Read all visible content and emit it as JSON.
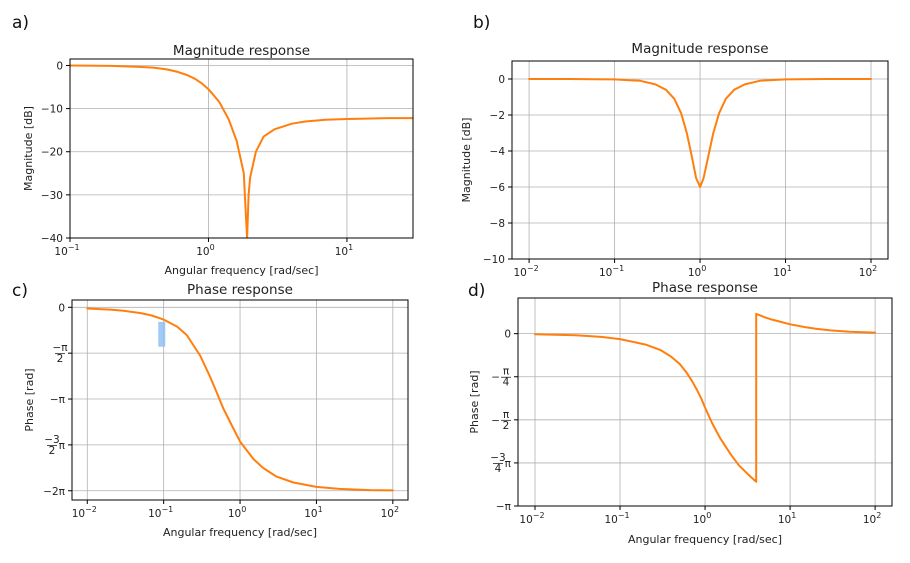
{
  "chart_data": [
    {
      "panel": "a)",
      "type": "line",
      "title": "Magnitude response",
      "xlabel": "Angular frequency [rad/sec]",
      "ylabel": "Magnitude [dB]",
      "xscale": "log",
      "xlim": [
        0.1,
        30
      ],
      "ylim": [
        -40,
        1.5
      ],
      "grid": true,
      "xticks": [
        {
          "v": 0.1,
          "b": "10",
          "e": "−1"
        },
        {
          "v": 1,
          "b": "10",
          "e": "0"
        },
        {
          "v": 10,
          "b": "10",
          "e": "1"
        }
      ],
      "yticks": [
        {
          "v": 0,
          "t": "0"
        },
        {
          "v": -10,
          "t": "−10"
        },
        {
          "v": -20,
          "t": "−20"
        },
        {
          "v": -30,
          "t": "−30"
        },
        {
          "v": -40,
          "t": "−40"
        }
      ],
      "series": [
        {
          "color": "#ff7f0e",
          "x": [
            0.1,
            0.2,
            0.3,
            0.4,
            0.5,
            0.6,
            0.7,
            0.8,
            0.9,
            1.0,
            1.2,
            1.4,
            1.6,
            1.8,
            1.85,
            1.9,
            1.95,
            2.0,
            2.2,
            2.5,
            3,
            4,
            5,
            7,
            10,
            15,
            20,
            30
          ],
          "y": [
            0,
            -0.1,
            -0.3,
            -0.5,
            -0.9,
            -1.5,
            -2.2,
            -3.1,
            -4.2,
            -5.5,
            -8.5,
            -12.5,
            -17.5,
            -25,
            -33,
            -40,
            -30,
            -26,
            -20,
            -16.5,
            -14.8,
            -13.5,
            -13,
            -12.6,
            -12.4,
            -12.3,
            -12.2,
            -12.2
          ]
        }
      ]
    },
    {
      "panel": "b)",
      "type": "line",
      "title": "Magnitude response",
      "xlabel": "",
      "ylabel": "Magnitude [dB]",
      "xscale": "log",
      "xlim": [
        0.00631,
        158
      ],
      "ylim": [
        -10,
        1
      ],
      "grid": true,
      "xticks": [
        {
          "v": 0.01,
          "b": "10",
          "e": "−2"
        },
        {
          "v": 0.1,
          "b": "10",
          "e": "−1"
        },
        {
          "v": 1,
          "b": "10",
          "e": "0"
        },
        {
          "v": 10,
          "b": "10",
          "e": "1"
        },
        {
          "v": 100,
          "b": "10",
          "e": "2"
        }
      ],
      "yticks": [
        {
          "v": 0,
          "t": "0"
        },
        {
          "v": -2,
          "t": "−2"
        },
        {
          "v": -4,
          "t": "−4"
        },
        {
          "v": -6,
          "t": "−6"
        },
        {
          "v": -8,
          "t": "−8"
        },
        {
          "v": -10,
          "t": "−10"
        }
      ],
      "series": [
        {
          "color": "#ff7f0e",
          "x": [
            0.01,
            0.03,
            0.06,
            0.1,
            0.2,
            0.3,
            0.4,
            0.5,
            0.6,
            0.7,
            0.8,
            0.9,
            1.0,
            1.1,
            1.25,
            1.43,
            1.67,
            2,
            2.5,
            3.33,
            5,
            10,
            30,
            100
          ],
          "y": [
            0,
            0,
            -0.01,
            -0.02,
            -0.1,
            -0.3,
            -0.6,
            -1.1,
            -1.9,
            -3.0,
            -4.3,
            -5.5,
            -6.0,
            -5.5,
            -4.3,
            -3.0,
            -1.9,
            -1.1,
            -0.6,
            -0.3,
            -0.1,
            -0.02,
            0,
            0
          ]
        }
      ]
    },
    {
      "panel": "c)",
      "type": "line",
      "title": "Phase response",
      "xlabel": "Angular frequency [rad/sec]",
      "ylabel": "Phase [rad]",
      "xscale": "log",
      "xlim": [
        0.00631,
        158
      ],
      "ylim": [
        -6.6,
        0.25
      ],
      "grid": true,
      "xticks": [
        {
          "v": 0.01,
          "b": "10",
          "e": "−2"
        },
        {
          "v": 0.1,
          "b": "10",
          "e": "−1"
        },
        {
          "v": 1,
          "b": "10",
          "e": "0"
        },
        {
          "v": 10,
          "b": "10",
          "e": "1"
        },
        {
          "v": 100,
          "b": "10",
          "e": "2"
        }
      ],
      "yticks": [
        {
          "v": 0,
          "t": "0"
        },
        {
          "v": -1.5708,
          "frac": [
            "−π",
            "2"
          ]
        },
        {
          "v": -3.1416,
          "t": "−π"
        },
        {
          "v": -4.7124,
          "frac": [
            "−3",
            "2"
          ],
          "suffix": "π"
        },
        {
          "v": -6.2832,
          "t": "−2π"
        }
      ],
      "highlight": {
        "x": [
          0.085,
          0.105
        ],
        "y": [
          -1.35,
          -0.5
        ],
        "color": "#90c0f5"
      },
      "series": [
        {
          "color": "#ff7f0e",
          "x": [
            0.01,
            0.02,
            0.03,
            0.05,
            0.07,
            0.1,
            0.15,
            0.2,
            0.3,
            0.4,
            0.5,
            0.6,
            0.8,
            1,
            1.5,
            2,
            3,
            5,
            10,
            20,
            50,
            100
          ],
          "y": [
            -0.04,
            -0.08,
            -0.12,
            -0.2,
            -0.28,
            -0.42,
            -0.66,
            -0.95,
            -1.65,
            -2.35,
            -2.95,
            -3.45,
            -4.1,
            -4.6,
            -5.2,
            -5.5,
            -5.8,
            -6.0,
            -6.15,
            -6.22,
            -6.26,
            -6.27
          ]
        }
      ]
    },
    {
      "panel": "d)",
      "type": "line",
      "title": "Phase response",
      "xlabel": "Angular frequency [rad/sec]",
      "ylabel": "Phase [rad]",
      "xscale": "log",
      "xlim": [
        0.00631,
        158
      ],
      "ylim": [
        -3.1416,
        0.65
      ],
      "grid": true,
      "xticks": [
        {
          "v": 0.01,
          "b": "10",
          "e": "−2"
        },
        {
          "v": 0.1,
          "b": "10",
          "e": "−1"
        },
        {
          "v": 1,
          "b": "10",
          "e": "0"
        },
        {
          "v": 10,
          "b": "10",
          "e": "1"
        },
        {
          "v": 100,
          "b": "10",
          "e": "2"
        }
      ],
      "yticks": [
        {
          "v": 0,
          "t": "0"
        },
        {
          "v": -0.7854,
          "frac": [
            "π",
            "4"
          ],
          "lead": "−"
        },
        {
          "v": -1.5708,
          "frac": [
            "π",
            "2"
          ],
          "lead": "−"
        },
        {
          "v": -2.3562,
          "frac": [
            "−3",
            "4"
          ],
          "suffix": "π"
        },
        {
          "v": -3.1416,
          "t": "−π"
        }
      ],
      "series": [
        {
          "color": "#ff7f0e",
          "x": [
            0.01,
            0.03,
            0.06,
            0.1,
            0.2,
            0.3,
            0.4,
            0.5,
            0.6,
            0.7,
            0.8,
            0.9,
            1.0,
            1.2,
            1.5,
            2,
            2.5,
            3,
            3.5,
            3.99,
            4.0,
            4.5,
            5,
            6,
            8,
            10,
            15,
            20,
            30,
            50,
            100
          ],
          "y": [
            -0.01,
            -0.03,
            -0.06,
            -0.1,
            -0.2,
            -0.3,
            -0.42,
            -0.55,
            -0.7,
            -0.86,
            -1.02,
            -1.18,
            -1.35,
            -1.62,
            -1.9,
            -2.2,
            -2.4,
            -2.52,
            -2.62,
            -2.7,
            0.36,
            0.33,
            0.3,
            0.26,
            0.21,
            0.17,
            0.12,
            0.09,
            0.06,
            0.035,
            0.02
          ]
        }
      ]
    }
  ]
}
